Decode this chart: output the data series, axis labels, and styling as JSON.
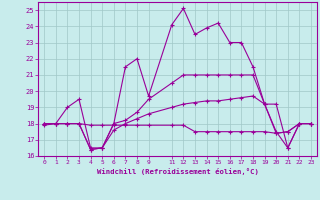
{
  "xlabel": "Windchill (Refroidissement éolien,°C)",
  "background_color": "#c8ecec",
  "grid_color": "#a0c8c8",
  "line_color": "#990099",
  "xlim": [
    -0.5,
    23.5
  ],
  "ylim": [
    16,
    25.5
  ],
  "yticks": [
    16,
    17,
    18,
    19,
    20,
    21,
    22,
    23,
    24,
    25
  ],
  "xticks": [
    0,
    1,
    2,
    3,
    4,
    5,
    6,
    7,
    8,
    9,
    11,
    12,
    13,
    14,
    15,
    16,
    17,
    18,
    19,
    20,
    21,
    22,
    23
  ],
  "series1_x": [
    0,
    1,
    2,
    3,
    4,
    5,
    6,
    7,
    8,
    9,
    11,
    12,
    13,
    14,
    15,
    16,
    17,
    18,
    19,
    20,
    21,
    22,
    23
  ],
  "series1_y": [
    17.9,
    18.0,
    18.0,
    18.0,
    17.9,
    17.9,
    17.9,
    17.9,
    17.9,
    17.9,
    17.9,
    17.9,
    17.5,
    17.5,
    17.5,
    17.5,
    17.5,
    17.5,
    17.5,
    17.4,
    17.5,
    18.0,
    18.0
  ],
  "series2_x": [
    0,
    1,
    2,
    3,
    4,
    5,
    6,
    7,
    8,
    9,
    11,
    12,
    13,
    14,
    15,
    16,
    17,
    18,
    19,
    20,
    21,
    22,
    23
  ],
  "series2_y": [
    18.0,
    18.0,
    18.0,
    18.0,
    16.4,
    16.5,
    17.6,
    18.0,
    18.3,
    18.6,
    19.0,
    19.2,
    19.3,
    19.4,
    19.4,
    19.5,
    19.6,
    19.7,
    19.2,
    17.4,
    17.5,
    18.0,
    18.0
  ],
  "series3_x": [
    0,
    1,
    2,
    3,
    4,
    5,
    6,
    7,
    8,
    9,
    11,
    12,
    13,
    14,
    15,
    16,
    17,
    18,
    19,
    20,
    21,
    22,
    23
  ],
  "series3_y": [
    18.0,
    18.0,
    18.0,
    18.0,
    16.4,
    16.5,
    18.0,
    18.2,
    18.7,
    19.5,
    20.5,
    21.0,
    21.0,
    21.0,
    21.0,
    21.0,
    21.0,
    21.0,
    19.2,
    17.5,
    16.5,
    18.0,
    18.0
  ],
  "series4_x": [
    0,
    1,
    2,
    3,
    4,
    5,
    6,
    7,
    8,
    9,
    11,
    12,
    13,
    14,
    15,
    16,
    17,
    18,
    19,
    20,
    21,
    22,
    23
  ],
  "series4_y": [
    18.0,
    18.0,
    19.0,
    19.5,
    16.5,
    16.5,
    18.0,
    21.5,
    22.0,
    19.7,
    24.1,
    25.1,
    23.5,
    23.9,
    24.2,
    23.0,
    23.0,
    21.5,
    19.2,
    19.2,
    16.5,
    18.0,
    18.0
  ]
}
